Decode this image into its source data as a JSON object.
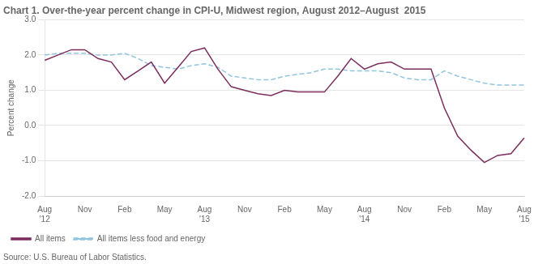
{
  "chart_data": {
    "type": "line",
    "title": "Chart 1. Over-the-year percent change in CPI-U, Midwest region, August 2012–August  2015",
    "y_label": "Percent change",
    "annotations": [
      "Source: U.S. Bureau of Labor Statistics."
    ],
    "categories": [
      "Aug\n'12",
      null,
      null,
      "Nov",
      null,
      null,
      "Feb",
      null,
      null,
      "May",
      null,
      null,
      "Aug\n'13",
      null,
      null,
      "Nov",
      null,
      null,
      "Feb",
      null,
      null,
      "May",
      null,
      null,
      "Aug\n'14",
      null,
      null,
      "Nov",
      null,
      null,
      "Feb",
      null,
      null,
      "May",
      null,
      null,
      "Aug\n'15"
    ],
    "series": [
      {
        "name": "All items",
        "color": "#7B2D5E",
        "line_style": "solid",
        "values": [
          1.85,
          2.0,
          2.15,
          2.15,
          1.9,
          1.8,
          1.3,
          1.55,
          1.8,
          1.2,
          1.65,
          2.1,
          2.2,
          1.6,
          1.1,
          1.0,
          0.9,
          0.85,
          1.0,
          0.95,
          0.95,
          0.95,
          1.4,
          1.9,
          1.6,
          1.75,
          1.8,
          1.6,
          1.6,
          1.6,
          0.5,
          -0.3,
          -0.7,
          -1.05,
          -0.85,
          -0.8,
          -0.35
        ]
      },
      {
        "name": "All items less food and energy",
        "color": "#92C5DE",
        "line_style": "dashed",
        "values": [
          2.0,
          2.05,
          2.05,
          2.05,
          2.0,
          2.0,
          2.05,
          1.9,
          1.7,
          1.65,
          1.6,
          1.7,
          1.75,
          1.65,
          1.4,
          1.35,
          1.3,
          1.3,
          1.4,
          1.45,
          1.5,
          1.6,
          1.6,
          1.55,
          1.55,
          1.55,
          1.5,
          1.35,
          1.3,
          1.3,
          1.55,
          1.4,
          1.3,
          1.2,
          1.15,
          1.15,
          1.15
        ]
      }
    ],
    "ylim": [
      -2.0,
      3.0
    ],
    "yticks": [
      {
        "value": -2.0,
        "label": "-2.0"
      },
      {
        "value": -1.0,
        "label": "-1.0"
      },
      {
        "value": 0.0,
        "label": "0.0"
      },
      {
        "value": 1.0,
        "label": "1.0"
      },
      {
        "value": 2.0,
        "label": "2.0"
      },
      {
        "value": 3.0,
        "label": "3.0"
      }
    ],
    "grid": "y",
    "legend": "lower left"
  }
}
